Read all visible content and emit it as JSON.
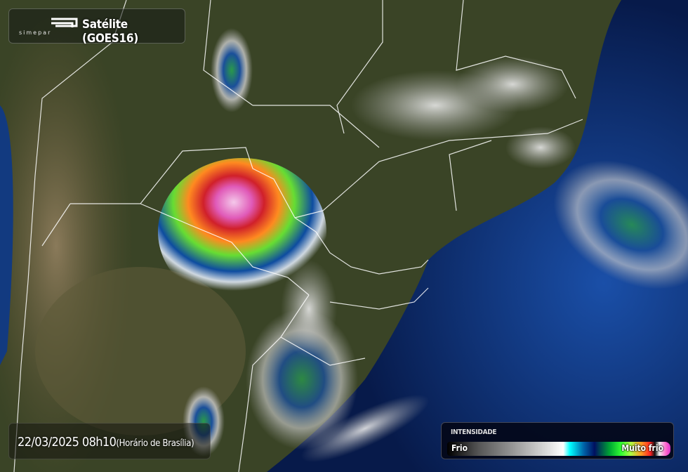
{
  "header": {
    "logo_text": "simepar",
    "title": "Satélite (GOES16)"
  },
  "timestamp": {
    "datetime": "22/03/2025 08h10",
    "timezone_note": "(Horário de Brasília)"
  },
  "legend": {
    "title": "INTENSIDADE",
    "low_label": "Frio",
    "high_label": "Muito frio",
    "scale_colors": [
      "#000000",
      "#999999",
      "#ffffff",
      "#00ffff",
      "#001060",
      "#33ff33",
      "#ff9922",
      "#ff2222",
      "#ff66cc"
    ]
  },
  "map": {
    "land_color": "#3a4426",
    "ocean_color": "#0d2a66",
    "border_color": "#ffffff"
  }
}
